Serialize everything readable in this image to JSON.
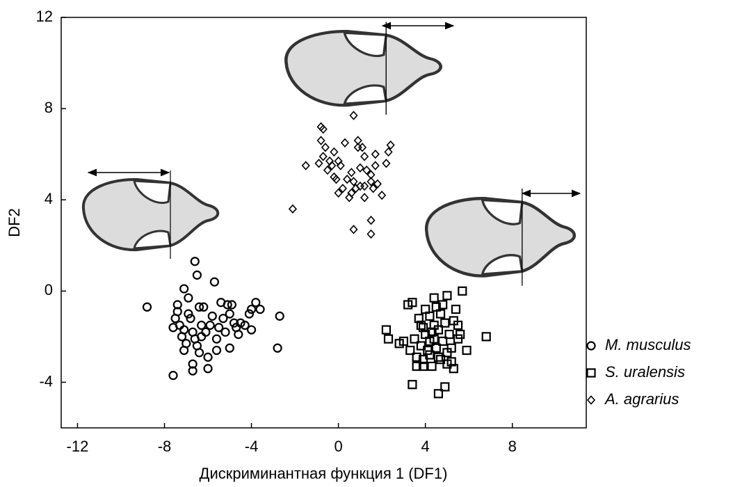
{
  "chart_data": {
    "type": "scatter",
    "x_label": "Дискриминантная функция 1 (DF1)",
    "y_label": "DF2",
    "xlim": [
      -12.75,
      11.4
    ],
    "ylim": [
      -6,
      12
    ],
    "xticks": [
      -12,
      -8,
      -4,
      0,
      4,
      8
    ],
    "yticks": [
      -4,
      0,
      4,
      8,
      12
    ],
    "legend": "right",
    "series": [
      {
        "name": "M. musculus",
        "color": "#000000",
        "marker": "circle",
        "x": [
          -8.8,
          -7.6,
          -6.6,
          -6.5,
          -5.7,
          -7.1,
          -6.9,
          -7.4,
          -7.4,
          -7.5,
          -7.3,
          -7.1,
          -7.2,
          -7.0,
          -7.1,
          -6.8,
          -6.7,
          -6.6,
          -6.5,
          -6.4,
          -6.2,
          -6.3,
          -6.1,
          -6.0,
          -6.0,
          -6.7,
          -6.7,
          -5.9,
          -5.8,
          -5.6,
          -5.6,
          -5.4,
          -5.3,
          -5.2,
          -5.0,
          -5.1,
          -4.9,
          -4.8,
          -4.7,
          -4.6,
          -4.5,
          -4.3,
          -4.1,
          -4.0,
          -4.0,
          -3.8,
          -3.6,
          -2.7,
          -2.8,
          -6.9,
          -5.5,
          -6.4,
          -7.6,
          -6.3,
          -5.0
        ],
        "values": [
          -0.7,
          -3.7,
          1.3,
          0.7,
          0.4,
          0.1,
          -0.3,
          -0.6,
          -0.9,
          -1.2,
          -1.5,
          -1.7,
          -2.0,
          -2.3,
          -2.6,
          -1.2,
          -1.8,
          -2.1,
          -2.4,
          -0.7,
          -0.7,
          -1.5,
          -1.8,
          -2.9,
          -3.4,
          -3.2,
          -3.5,
          -1.5,
          -1.1,
          -2.1,
          -2.6,
          -0.5,
          -1.2,
          -1.8,
          -2.5,
          -0.6,
          -0.6,
          -1.4,
          -1.6,
          -1.9,
          -1.4,
          -1.5,
          -1.0,
          -0.8,
          -1.7,
          -0.5,
          -0.8,
          -1.1,
          -2.5,
          -1.0,
          -1.6,
          -2.7,
          -1.6,
          -2.0,
          -1.0
        ]
      },
      {
        "name": "S. uralensis",
        "color": "#000000",
        "marker": "square",
        "x": [
          2.2,
          2.3,
          2.8,
          3.0,
          3.2,
          3.4,
          3.4,
          3.5,
          3.3,
          3.6,
          3.6,
          3.7,
          3.8,
          3.8,
          3.9,
          3.9,
          4.0,
          4.0,
          4.1,
          4.2,
          4.2,
          4.3,
          4.4,
          4.4,
          4.4,
          4.5,
          4.5,
          4.6,
          4.6,
          4.7,
          4.7,
          4.8,
          4.8,
          4.9,
          4.9,
          5.0,
          5.0,
          5.1,
          5.2,
          5.2,
          5.3,
          5.3,
          5.4,
          5.5,
          5.5,
          5.6,
          5.7,
          5.9,
          6.8,
          4.3,
          4.6,
          3.9,
          5.0,
          4.2
        ],
        "values": [
          -1.7,
          -2.1,
          -2.3,
          -2.2,
          -0.6,
          -0.5,
          -4.1,
          -2.1,
          -2.6,
          -2.9,
          -3.3,
          -1.2,
          -1.5,
          -2.4,
          -3.0,
          -3.3,
          -0.8,
          -1.9,
          -2.6,
          -1.1,
          -2.8,
          -3.3,
          -0.3,
          -1.5,
          -2.1,
          -0.7,
          -2.5,
          -4.5,
          -1.7,
          -1.0,
          -3.0,
          -0.6,
          -2.2,
          -4.2,
          -1.4,
          -2.7,
          -0.2,
          -1.9,
          -3.1,
          -2.5,
          -1.3,
          -3.4,
          -0.8,
          -1.5,
          -2.1,
          -1.9,
          0.0,
          -2.6,
          -2.0,
          -1.8,
          -2.9,
          -1.6,
          -3.2,
          -2.2
        ]
      },
      {
        "name": "A. agrarius",
        "color": "#000000",
        "marker": "diamond",
        "x": [
          -2.1,
          -1.5,
          -0.9,
          -0.8,
          -0.8,
          -0.7,
          -0.6,
          -0.7,
          -0.5,
          -0.4,
          -0.3,
          -0.2,
          -0.2,
          0.0,
          0.0,
          0.1,
          0.2,
          0.3,
          0.4,
          0.5,
          0.6,
          0.6,
          0.7,
          0.7,
          0.7,
          0.8,
          0.9,
          0.9,
          1.0,
          1.0,
          1.1,
          1.2,
          1.2,
          1.3,
          1.5,
          1.5,
          1.5,
          1.5,
          1.6,
          1.7,
          1.7,
          1.8,
          2.0,
          2.2,
          2.3,
          2.4,
          -0.1,
          1.2
        ],
        "values": [
          3.6,
          5.5,
          5.6,
          6.6,
          7.2,
          7.1,
          6.3,
          5.9,
          5.3,
          5.7,
          5.5,
          5.0,
          6.1,
          4.3,
          5.7,
          5.5,
          4.5,
          6.5,
          4.9,
          4.1,
          5.2,
          4.3,
          4.8,
          7.7,
          2.7,
          4.5,
          6.3,
          6.6,
          4.6,
          5.4,
          6.3,
          5.9,
          4.6,
          5.3,
          5.1,
          4.8,
          3.1,
          2.5,
          4.5,
          5.5,
          6.0,
          4.7,
          4.2,
          5.6,
          6.1,
          6.4,
          4.9,
          4.1
        ]
      }
    ]
  }
}
